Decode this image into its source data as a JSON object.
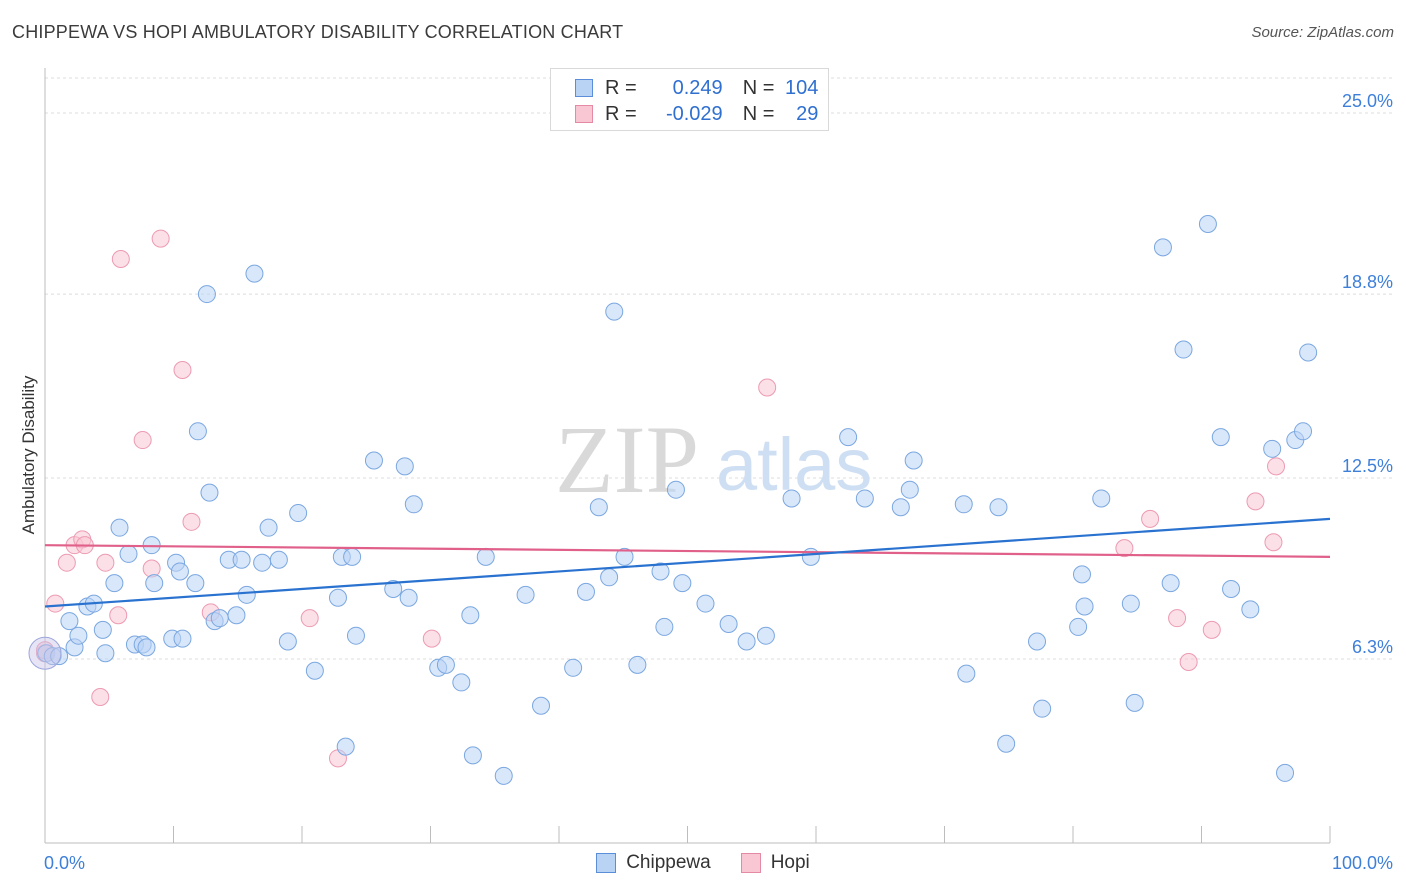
{
  "title": "CHIPPEWA VS HOPI AMBULATORY DISABILITY CORRELATION CHART",
  "source": "Source: ZipAtlas.com",
  "watermark": {
    "zip": "ZIP",
    "atlas": "atlas"
  },
  "legend_top": {
    "rows": [
      {
        "r_label": "R =",
        "r_value": "0.249",
        "n_label": "N =",
        "n_value": "104",
        "color": "#5b8ed8",
        "fill": "#b9d3f5"
      },
      {
        "r_label": "R =",
        "r_value": "-0.029",
        "n_label": "N =",
        "n_value": "29",
        "color": "#e58aa4",
        "fill": "#f9c6d4"
      }
    ]
  },
  "colors": {
    "blue_line": "#2a72d0",
    "pink_line": "#e0608a",
    "blue_point": "#7aa7e0",
    "pink_point": "#ec9ab2",
    "tick_label": "#3d7fd9"
  },
  "chart_data": {
    "type": "scatter",
    "title": "CHIPPEWA VS HOPI AMBULATORY DISABILITY CORRELATION CHART",
    "xlabel": "",
    "ylabel": "Ambulatory Disability",
    "xlim": [
      0,
      100
    ],
    "ylim": [
      0,
      26.2
    ],
    "x_tick_labels": [
      "0.0%",
      "100.0%"
    ],
    "y_ticks": [
      6.3,
      12.5,
      18.8,
      25.0
    ],
    "y_tick_labels": [
      "6.3%",
      "12.5%",
      "18.8%",
      "25.0%"
    ],
    "grid": true,
    "legend_position": "bottom-center",
    "series": [
      {
        "name": "Chippewa",
        "trend": [
          [
            0,
            8.1
          ],
          [
            100,
            11.1
          ]
        ],
        "points": [
          [
            0.1,
            6.5
          ],
          [
            0.6,
            6.4
          ],
          [
            1.1,
            6.4
          ],
          [
            1.9,
            7.6
          ],
          [
            2.3,
            6.7
          ],
          [
            2.6,
            7.1
          ],
          [
            3.3,
            8.1
          ],
          [
            3.8,
            8.2
          ],
          [
            4.5,
            7.3
          ],
          [
            4.7,
            6.5
          ],
          [
            5.4,
            8.9
          ],
          [
            5.8,
            10.8
          ],
          [
            6.5,
            9.9
          ],
          [
            7.0,
            6.8
          ],
          [
            7.6,
            6.8
          ],
          [
            7.9,
            6.7
          ],
          [
            8.3,
            10.2
          ],
          [
            8.5,
            8.9
          ],
          [
            9.9,
            7.0
          ],
          [
            10.2,
            9.6
          ],
          [
            10.5,
            9.3
          ],
          [
            10.7,
            7.0
          ],
          [
            11.7,
            8.9
          ],
          [
            11.9,
            14.1
          ],
          [
            12.6,
            18.8
          ],
          [
            12.8,
            12.0
          ],
          [
            13.2,
            7.6
          ],
          [
            13.6,
            7.7
          ],
          [
            14.3,
            9.7
          ],
          [
            14.9,
            7.8
          ],
          [
            15.3,
            9.7
          ],
          [
            15.7,
            8.5
          ],
          [
            16.3,
            19.5
          ],
          [
            16.9,
            9.6
          ],
          [
            17.4,
            10.8
          ],
          [
            18.2,
            9.7
          ],
          [
            18.9,
            6.9
          ],
          [
            19.7,
            11.3
          ],
          [
            21.0,
            5.9
          ],
          [
            22.8,
            8.4
          ],
          [
            23.1,
            9.8
          ],
          [
            23.4,
            3.3
          ],
          [
            23.9,
            9.8
          ],
          [
            24.2,
            7.1
          ],
          [
            25.6,
            13.1
          ],
          [
            27.1,
            8.7
          ],
          [
            28.0,
            12.9
          ],
          [
            28.3,
            8.4
          ],
          [
            28.7,
            11.6
          ],
          [
            30.6,
            6.0
          ],
          [
            31.2,
            6.1
          ],
          [
            32.4,
            5.5
          ],
          [
            33.1,
            7.8
          ],
          [
            33.3,
            3.0
          ],
          [
            34.3,
            9.8
          ],
          [
            35.7,
            2.3
          ],
          [
            37.4,
            8.5
          ],
          [
            38.6,
            4.7
          ],
          [
            41.1,
            6.0
          ],
          [
            42.1,
            8.6
          ],
          [
            43.1,
            11.5
          ],
          [
            43.9,
            9.1
          ],
          [
            44.3,
            18.2
          ],
          [
            45.1,
            9.8
          ],
          [
            46.1,
            6.1
          ],
          [
            47.9,
            9.3
          ],
          [
            48.2,
            7.4
          ],
          [
            49.1,
            12.1
          ],
          [
            49.6,
            8.9
          ],
          [
            51.4,
            8.2
          ],
          [
            53.2,
            7.5
          ],
          [
            54.6,
            6.9
          ],
          [
            56.1,
            7.1
          ],
          [
            58.1,
            11.8
          ],
          [
            59.6,
            9.8
          ],
          [
            62.5,
            13.9
          ],
          [
            63.8,
            11.8
          ],
          [
            66.6,
            11.5
          ],
          [
            67.3,
            12.1
          ],
          [
            67.6,
            13.1
          ],
          [
            71.5,
            11.6
          ],
          [
            71.7,
            5.8
          ],
          [
            74.2,
            11.5
          ],
          [
            74.8,
            3.4
          ],
          [
            77.2,
            6.9
          ],
          [
            77.6,
            4.6
          ],
          [
            80.4,
            7.4
          ],
          [
            80.7,
            9.2
          ],
          [
            80.9,
            8.1
          ],
          [
            82.2,
            11.8
          ],
          [
            84.5,
            8.2
          ],
          [
            84.8,
            4.8
          ],
          [
            87.0,
            20.4
          ],
          [
            87.6,
            8.9
          ],
          [
            88.6,
            16.9
          ],
          [
            90.5,
            21.2
          ],
          [
            91.5,
            13.9
          ],
          [
            92.3,
            8.7
          ],
          [
            93.8,
            8.0
          ],
          [
            95.5,
            13.5
          ],
          [
            96.5,
            2.4
          ],
          [
            97.3,
            13.8
          ],
          [
            97.9,
            14.1
          ],
          [
            98.3,
            16.8
          ]
        ]
      },
      {
        "name": "Hopi",
        "trend": [
          [
            0,
            10.2
          ],
          [
            100,
            9.8
          ]
        ],
        "points": [
          [
            0.0,
            6.5
          ],
          [
            0.8,
            8.2
          ],
          [
            1.7,
            9.6
          ],
          [
            2.3,
            10.2
          ],
          [
            2.9,
            10.4
          ],
          [
            3.1,
            10.2
          ],
          [
            4.3,
            5.0
          ],
          [
            4.7,
            9.6
          ],
          [
            5.7,
            7.8
          ],
          [
            5.9,
            20.0
          ],
          [
            7.6,
            13.8
          ],
          [
            8.3,
            9.4
          ],
          [
            9.0,
            20.7
          ],
          [
            10.7,
            16.2
          ],
          [
            11.4,
            11.0
          ],
          [
            12.9,
            7.9
          ],
          [
            20.6,
            7.7
          ],
          [
            22.8,
            2.9
          ],
          [
            30.1,
            7.0
          ],
          [
            56.2,
            15.6
          ],
          [
            84.0,
            10.1
          ],
          [
            86.0,
            11.1
          ],
          [
            88.1,
            7.7
          ],
          [
            89.0,
            6.2
          ],
          [
            90.8,
            7.3
          ],
          [
            94.2,
            11.7
          ],
          [
            95.6,
            10.3
          ],
          [
            95.8,
            12.9
          ],
          [
            0.0,
            6.6
          ]
        ]
      }
    ]
  }
}
